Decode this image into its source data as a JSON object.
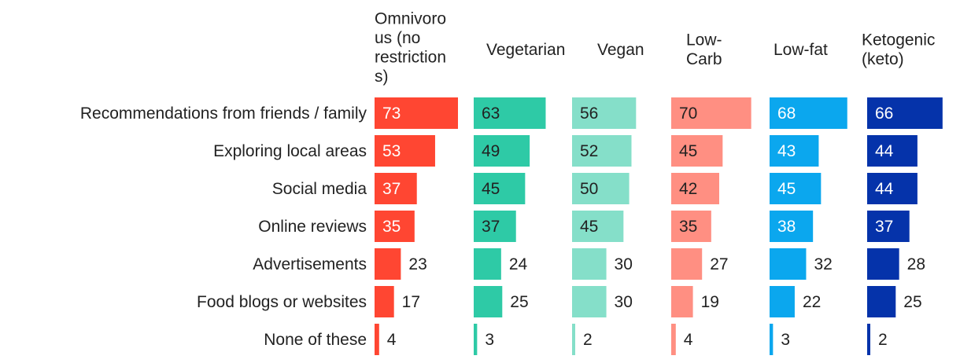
{
  "chart_data": {
    "type": "bar",
    "orientation": "horizontal",
    "layout": "small-multiples",
    "categories": [
      "Recommendations from friends / family",
      "Exploring local areas",
      "Social media",
      "Online reviews",
      "Advertisements",
      "Food blogs or websites",
      "None of these"
    ],
    "series": [
      {
        "name": "Omnivorous (no restrictions)",
        "header_lines": [
          "Omnivoro",
          "us (no",
          "restriction",
          "s)"
        ],
        "color": "#ff4632",
        "label_inside_color": "#ffffff",
        "values": [
          73,
          53,
          37,
          35,
          23,
          17,
          4
        ]
      },
      {
        "name": "Vegetarian",
        "header_lines": [
          "Vegetarian"
        ],
        "color": "#2ecaa6",
        "label_inside_color": "#222222",
        "values": [
          63,
          49,
          45,
          37,
          24,
          25,
          3
        ]
      },
      {
        "name": "Vegan",
        "header_lines": [
          "Vegan"
        ],
        "color": "#85dfc9",
        "label_inside_color": "#222222",
        "values": [
          56,
          52,
          50,
          45,
          30,
          30,
          2
        ]
      },
      {
        "name": "Low-Carb",
        "header_lines": [
          "Low-",
          "Carb"
        ],
        "color": "#ff8f82",
        "label_inside_color": "#222222",
        "values": [
          70,
          45,
          42,
          35,
          27,
          19,
          4
        ]
      },
      {
        "name": "Low-fat",
        "header_lines": [
          "Low-fat"
        ],
        "color": "#0ba7ee",
        "label_inside_color": "#ffffff",
        "values": [
          68,
          43,
          45,
          38,
          32,
          22,
          3
        ]
      },
      {
        "name": "Ketogenic (keto)",
        "header_lines": [
          "Ketogenic",
          "(keto)"
        ],
        "color": "#0533aa",
        "label_inside_color": "#ffffff",
        "values": [
          66,
          44,
          44,
          37,
          28,
          25,
          2
        ]
      }
    ],
    "xlim": [
      0,
      73
    ],
    "title": "",
    "xlabel": "",
    "ylabel": "",
    "grid": false,
    "legend": "none"
  }
}
